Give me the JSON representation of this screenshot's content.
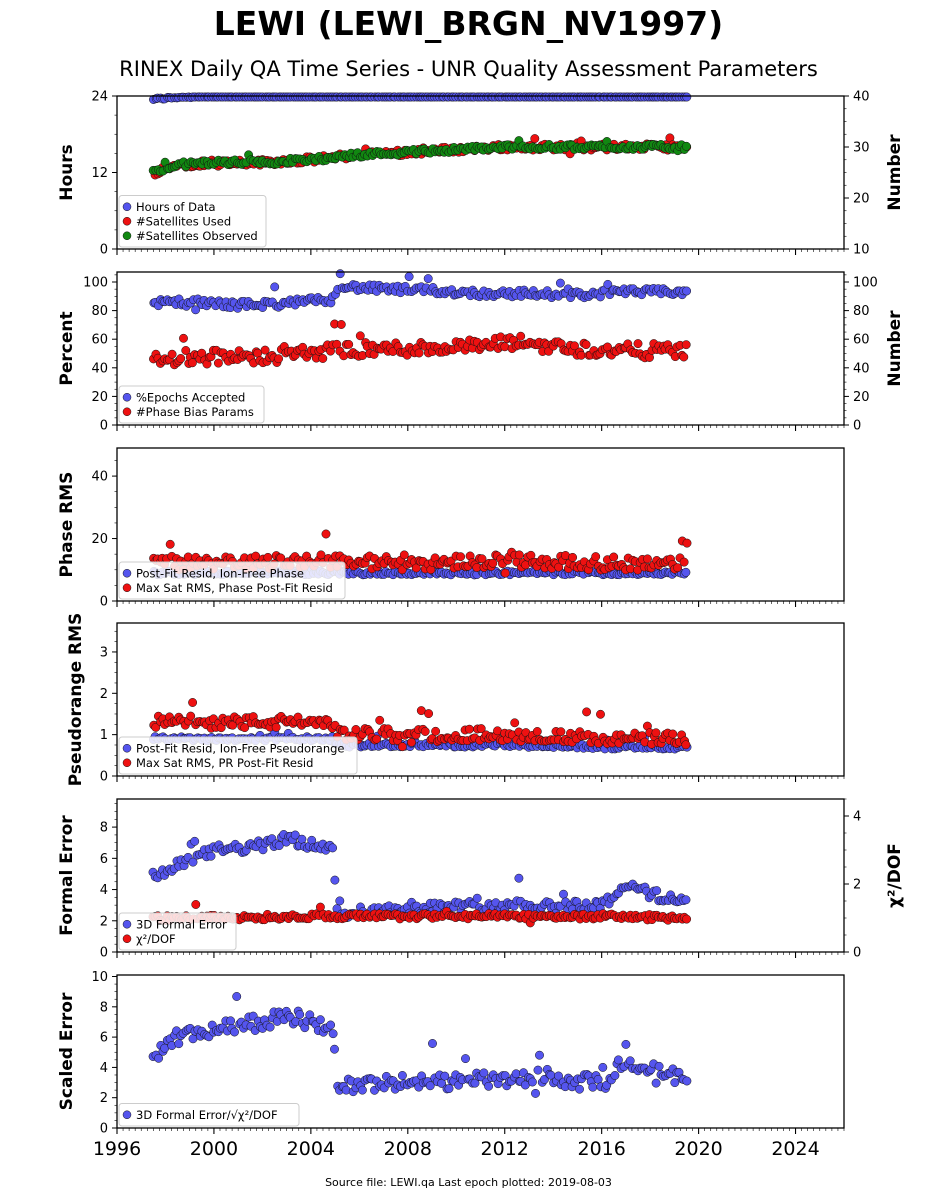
{
  "header": {
    "title": "LEWI (LEWI_BRGN_NV1997)",
    "subtitle": "RINEX Daily QA Time Series - UNR Quality Assessment Parameters"
  },
  "footer": {
    "text": "Source file: LEWI.qa Last epoch plotted: 2019-08-03"
  },
  "colors": {
    "blue": "#5555ee",
    "red": "#ee1111",
    "green": "#118811"
  },
  "chart_data": [
    {
      "type": "scatter",
      "id": "hours",
      "ylabel": "Hours",
      "ylim": [
        0,
        24
      ],
      "yticks": [
        "0",
        "12",
        "24"
      ],
      "y2label": "Number",
      "y2lim": [
        10,
        40
      ],
      "y2ticks": [
        "10",
        "20",
        "30",
        "40"
      ],
      "legend": [
        "Hours of Data",
        "#Satellites Used",
        "#Satellites Observed"
      ],
      "legend_position": "lower-left",
      "series": [
        {
          "name": "Hours of Data",
          "axis": "left",
          "color": "blue",
          "x": [
            1997.5,
            1998.5,
            2000,
            2002,
            2004,
            2006,
            2008,
            2010,
            2012,
            2014,
            2016,
            2018,
            2019.5
          ],
          "y": [
            23.5,
            23.8,
            24,
            24,
            24,
            24,
            24,
            24,
            24,
            24,
            24,
            24,
            24
          ]
        },
        {
          "name": "#Satellites Used",
          "axis": "right",
          "color": "red",
          "x": [
            1997.5,
            1998.5,
            2000,
            2002,
            2004,
            2005,
            2006,
            2008,
            2010,
            2012,
            2014,
            2016,
            2018,
            2019.5
          ],
          "y": [
            25,
            26.5,
            27,
            27,
            27.5,
            28,
            28.5,
            29,
            29.5,
            30,
            30,
            30,
            30,
            30
          ]
        },
        {
          "name": "#Satellites Observed",
          "axis": "right",
          "color": "green",
          "x": [
            1997.5,
            1998.5,
            2000,
            2002,
            2004,
            2005,
            2006,
            2008,
            2010,
            2012,
            2014,
            2016,
            2018,
            2019.5
          ],
          "y": [
            25,
            26.5,
            27,
            27,
            27.5,
            28,
            28.5,
            29,
            29.5,
            30,
            30,
            30,
            30,
            30
          ]
        }
      ]
    },
    {
      "type": "scatter",
      "id": "percent",
      "ylabel": "Percent",
      "ylim": [
        0,
        107
      ],
      "yticks": [
        "0",
        "20",
        "40",
        "60",
        "80",
        "100"
      ],
      "y2label": "Number",
      "y2lim": [
        0,
        107
      ],
      "y2ticks": [
        "0",
        "20",
        "40",
        "60",
        "80",
        "100"
      ],
      "legend": [
        "%Epochs Accepted",
        "#Phase Bias Params"
      ],
      "legend_position": "lower-left",
      "series": [
        {
          "name": "%Epochs Accepted",
          "axis": "left",
          "color": "blue",
          "x": [
            1997.5,
            1999,
            2001,
            2003,
            2004.9,
            2005.1,
            2007,
            2009,
            2011,
            2013,
            2015,
            2017,
            2019.5
          ],
          "y": [
            85,
            86,
            84,
            85,
            88,
            97,
            95,
            94,
            92,
            92,
            91,
            93,
            93
          ]
        },
        {
          "name": "#Phase Bias Params",
          "axis": "right",
          "color": "red",
          "x": [
            1997.5,
            1999,
            2001,
            2003,
            2005,
            2007,
            2009,
            2011,
            2012.5,
            2014,
            2016,
            2018,
            2019.5
          ],
          "y": [
            45,
            48,
            47,
            49,
            52,
            53,
            54,
            55,
            58,
            55,
            52,
            52,
            52
          ]
        }
      ]
    },
    {
      "type": "scatter",
      "id": "phase",
      "ylabel": "Phase RMS",
      "ylim": [
        0,
        49
      ],
      "yticks": [
        "0",
        "20",
        "40"
      ],
      "legend": [
        "Post-Fit Resid, Ion-Free Phase",
        "Max Sat RMS, Phase Post-Fit Resid"
      ],
      "legend_position": "lower-left",
      "series": [
        {
          "name": "Post-Fit Resid, Ion-Free Phase",
          "axis": "left",
          "color": "blue",
          "x": [
            1997.5,
            2000,
            2004,
            2008,
            2012,
            2016,
            2019.5
          ],
          "y": [
            9,
            9,
            9,
            9,
            9,
            9,
            9
          ]
        },
        {
          "name": "Max Sat RMS, Phase Post-Fit Resid",
          "axis": "left",
          "color": "red",
          "x": [
            1997.5,
            2000,
            2004,
            2008,
            2012,
            2016,
            2019.5
          ],
          "y": [
            12,
            12,
            13,
            12,
            13,
            12,
            12
          ]
        }
      ]
    },
    {
      "type": "scatter",
      "id": "pseudorange",
      "ylabel": "Pseudorange RMS",
      "ylim": [
        0,
        3.7
      ],
      "yticks": [
        "0",
        "1",
        "2",
        "3"
      ],
      "legend": [
        "Post-Fit Resid, Ion-Free Pseudorange",
        "Max Sat RMS, PR Post-Fit Resid"
      ],
      "legend_position": "lower-left",
      "series": [
        {
          "name": "Post-Fit Resid, Ion-Free Pseudorange",
          "axis": "left",
          "color": "blue",
          "x": [
            1997.5,
            2000,
            2004.9,
            2005.1,
            2008,
            2012,
            2016,
            2019.5
          ],
          "y": [
            0.9,
            0.9,
            0.9,
            0.75,
            0.75,
            0.75,
            0.7,
            0.7
          ]
        },
        {
          "name": "Max Sat RMS, PR Post-Fit Resid",
          "axis": "left",
          "color": "red",
          "x": [
            1997.5,
            2000,
            2004.9,
            2005.1,
            2008,
            2012,
            2016,
            2019.5
          ],
          "y": [
            1.3,
            1.3,
            1.3,
            1.0,
            1.0,
            1.0,
            0.9,
            0.9
          ]
        }
      ]
    },
    {
      "type": "scatter",
      "id": "formal",
      "ylabel": "Formal Error",
      "ylim": [
        0,
        9.8
      ],
      "yticks": [
        "0",
        "2",
        "4",
        "6",
        "8"
      ],
      "y2label": "χ²/DOF",
      "y2lim": [
        0,
        4.5
      ],
      "y2ticks": [
        "0",
        "2",
        "4"
      ],
      "legend": [
        "3D Formal Error",
        "χ²/DOF"
      ],
      "legend_position": "lower-left",
      "series": [
        {
          "name": "3D Formal Error",
          "axis": "left",
          "color": "blue",
          "x": [
            1997.5,
            1998.5,
            2000,
            2002,
            2003,
            2004.9,
            2005.1,
            2008,
            2012,
            2016,
            2017,
            2018,
            2019.5
          ],
          "y": [
            4.8,
            5.5,
            6.5,
            6.8,
            7.3,
            6.5,
            2.5,
            2.8,
            3.0,
            3.0,
            4.3,
            3.7,
            3.3
          ]
        },
        {
          "name": "χ²/DOF",
          "axis": "right",
          "color": "red",
          "x": [
            1997.5,
            2000,
            2004,
            2008,
            2012,
            2016,
            2019.5
          ],
          "y": [
            1.0,
            1.0,
            1.05,
            1.05,
            1.05,
            1.05,
            1.0
          ]
        }
      ]
    },
    {
      "type": "scatter",
      "id": "scaled",
      "ylabel": "Scaled Error",
      "ylim": [
        0,
        10.1
      ],
      "yticks": [
        "0",
        "2",
        "4",
        "6",
        "8",
        "10"
      ],
      "legend": [
        "3D Formal Error/√χ²/DOF"
      ],
      "legend_position": "lower-left",
      "series": [
        {
          "name": "3D Formal Error/√χ²/DOF",
          "axis": "left",
          "color": "blue",
          "x": [
            1997.5,
            1998.5,
            2000,
            2002,
            2003,
            2004.9,
            2005.1,
            2008,
            2012,
            2016,
            2017,
            2018,
            2019.5
          ],
          "y": [
            4.5,
            6.0,
            6.5,
            7.0,
            7.5,
            6.5,
            2.8,
            3.0,
            3.2,
            3.0,
            4.5,
            3.8,
            3.2
          ]
        }
      ]
    }
  ],
  "x_axis": {
    "xlim": [
      1996,
      2026
    ],
    "ticks": [
      1996,
      2000,
      2004,
      2008,
      2012,
      2016,
      2020,
      2024
    ]
  }
}
